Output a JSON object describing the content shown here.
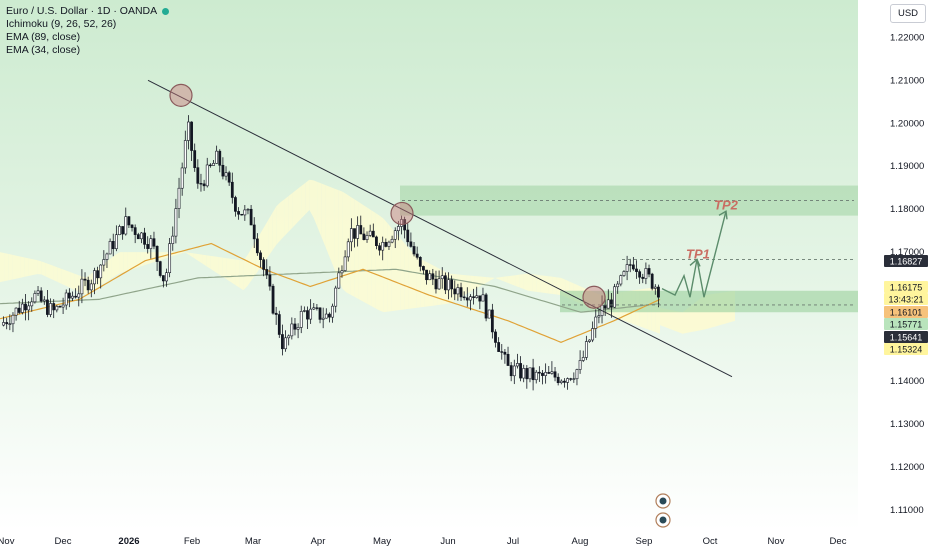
{
  "header": {
    "symbol_title": "Euro / U.S. Dollar · 1D · OANDA",
    "indicators": [
      "Ichimoku (9, 26, 52, 26)",
      "EMA (89, close)",
      "EMA (34, close)"
    ],
    "currency_button": "USD"
  },
  "colors": {
    "up_candle": "#ffffff",
    "down_candle": "#131722",
    "cloud_bull": "#fdfbd2",
    "cloud_bear": "#d9d9d9",
    "zone": "#a5d6a7",
    "ema_fast": "#e0a236",
    "ema_slow": "#8fa48a",
    "trendline": "#2a2e39",
    "projection": "#5b8c6b",
    "tp_label": "#c96d62",
    "marker_fill": "#c9787a",
    "price_current": "#fff59d",
    "price_dark": "#2a2e39"
  },
  "chart_data": {
    "type": "candlestick",
    "symbol": "Euro / U.S. Dollar",
    "timeframe": "1D",
    "x_tick_labels": [
      "Nov",
      "Dec",
      "2026",
      "Feb",
      "Mar",
      "Apr",
      "May",
      "Jun",
      "Jul",
      "Aug",
      "Sep",
      "Oct",
      "Nov",
      "Dec"
    ],
    "y_tick_labels": [
      "1.22000",
      "1.21000",
      "1.20000",
      "1.19000",
      "1.18000",
      "1.17000",
      "1.14000",
      "1.13000",
      "1.12000",
      "1.11000"
    ],
    "y_range": [
      1.106,
      1.228
    ],
    "price_segments": [
      {
        "t": 0.0,
        "p": 1.153
      },
      {
        "t": 0.05,
        "p": 1.16
      },
      {
        "t": 0.08,
        "p": 1.156
      },
      {
        "t": 0.14,
        "p": 1.164
      },
      {
        "t": 0.19,
        "p": 1.177
      },
      {
        "t": 0.23,
        "p": 1.172
      },
      {
        "t": 0.25,
        "p": 1.163
      },
      {
        "t": 0.285,
        "p": 1.199
      },
      {
        "t": 0.3,
        "p": 1.185
      },
      {
        "t": 0.33,
        "p": 1.192
      },
      {
        "t": 0.36,
        "p": 1.18
      },
      {
        "t": 0.38,
        "p": 1.178
      },
      {
        "t": 0.43,
        "p": 1.148
      },
      {
        "t": 0.46,
        "p": 1.156
      },
      {
        "t": 0.5,
        "p": 1.155
      },
      {
        "t": 0.53,
        "p": 1.175
      },
      {
        "t": 0.58,
        "p": 1.172
      },
      {
        "t": 0.61,
        "p": 1.177
      },
      {
        "t": 0.64,
        "p": 1.165
      },
      {
        "t": 0.68,
        "p": 1.162
      },
      {
        "t": 0.73,
        "p": 1.16
      },
      {
        "t": 0.77,
        "p": 1.143
      },
      {
        "t": 0.81,
        "p": 1.141
      },
      {
        "t": 0.86,
        "p": 1.141
      },
      {
        "t": 0.88,
        "p": 1.143
      },
      {
        "t": 0.91,
        "p": 1.156
      },
      {
        "t": 0.93,
        "p": 1.159
      },
      {
        "t": 0.96,
        "p": 1.168
      },
      {
        "t": 1.0,
        "p": 1.1615
      }
    ],
    "ema_34_segments": [
      {
        "t": 0.0,
        "p": 1.1545
      },
      {
        "t": 0.12,
        "p": 1.159
      },
      {
        "t": 0.22,
        "p": 1.168
      },
      {
        "t": 0.32,
        "p": 1.172
      },
      {
        "t": 0.4,
        "p": 1.166
      },
      {
        "t": 0.47,
        "p": 1.162
      },
      {
        "t": 0.55,
        "p": 1.166
      },
      {
        "t": 0.65,
        "p": 1.16
      },
      {
        "t": 0.77,
        "p": 1.154
      },
      {
        "t": 0.85,
        "p": 1.149
      },
      {
        "t": 0.93,
        "p": 1.154
      },
      {
        "t": 1.0,
        "p": 1.159
      }
    ],
    "ema_89_segments": [
      {
        "t": 0.0,
        "p": 1.158
      },
      {
        "t": 0.15,
        "p": 1.159
      },
      {
        "t": 0.3,
        "p": 1.164
      },
      {
        "t": 0.45,
        "p": 1.165
      },
      {
        "t": 0.6,
        "p": 1.166
      },
      {
        "t": 0.75,
        "p": 1.162
      },
      {
        "t": 0.88,
        "p": 1.156
      },
      {
        "t": 1.0,
        "p": 1.158
      }
    ],
    "cloud_segments": [
      {
        "t": 0.0,
        "a": 1.17,
        "b": 1.163
      },
      {
        "t": 0.06,
        "a": 1.168,
        "b": 1.165
      },
      {
        "t": 0.13,
        "a": 1.164,
        "b": 1.16
      },
      {
        "t": 0.18,
        "a": 1.17,
        "b": 1.165
      },
      {
        "t": 0.28,
        "a": 1.17,
        "b": 1.17
      },
      {
        "t": 0.37,
        "a": 1.168,
        "b": 1.161
      },
      {
        "t": 0.42,
        "a": 1.181,
        "b": 1.172
      },
      {
        "t": 0.47,
        "a": 1.187,
        "b": 1.18
      },
      {
        "t": 0.52,
        "a": 1.184,
        "b": 1.161
      },
      {
        "t": 0.58,
        "a": 1.178,
        "b": 1.156
      },
      {
        "t": 0.63,
        "a": 1.169,
        "b": 1.157
      },
      {
        "t": 0.68,
        "a": 1.165,
        "b": 1.158
      },
      {
        "t": 0.75,
        "a": 1.164,
        "b": 1.164
      },
      {
        "t": 0.8,
        "a": 1.165,
        "b": 1.161
      },
      {
        "t": 0.85,
        "a": 1.164,
        "b": 1.16
      },
      {
        "t": 0.91,
        "a": 1.16,
        "b": 1.156
      },
      {
        "t": 1.0,
        "a": 1.162,
        "b": 1.151
      }
    ],
    "future_cloud_segments": [
      {
        "t": 0.0,
        "a": 1.157,
        "b": 1.153
      },
      {
        "t": 0.3,
        "a": 1.156,
        "b": 1.151
      },
      {
        "t": 0.6,
        "a": 1.16,
        "b": 1.152
      },
      {
        "t": 1.0,
        "a": 1.161,
        "b": 1.154
      }
    ],
    "trendline": {
      "from": {
        "date": "Dec",
        "price": 1.21
      },
      "to": {
        "date": "Oct",
        "price": 1.141
      }
    },
    "resistance_zone": [
      1.1785,
      1.1855
    ],
    "support_zone": [
      1.156,
      1.161
    ],
    "dashed_levels": [
      1.182,
      1.1683,
      1.1577
    ],
    "projection_path": [
      1.1615,
      1.16,
      1.1645,
      1.1595,
      1.1683,
      1.16,
      1.1795
    ],
    "targets": [
      {
        "label": "TP1",
        "price": 1.1683
      },
      {
        "label": "TP2",
        "price": 1.1795
      }
    ],
    "price_labels": [
      {
        "text": "1.16827",
        "style": "dark"
      },
      {
        "text": "1.16175",
        "style": "current"
      },
      {
        "text": "13:43:21",
        "style": "current"
      },
      {
        "text": "1.16101",
        "style": "orange"
      },
      {
        "text": "1.15771",
        "style": "green"
      },
      {
        "text": "1.15641",
        "style": "dark"
      },
      {
        "text": "1.15324",
        "style": "current"
      }
    ]
  }
}
